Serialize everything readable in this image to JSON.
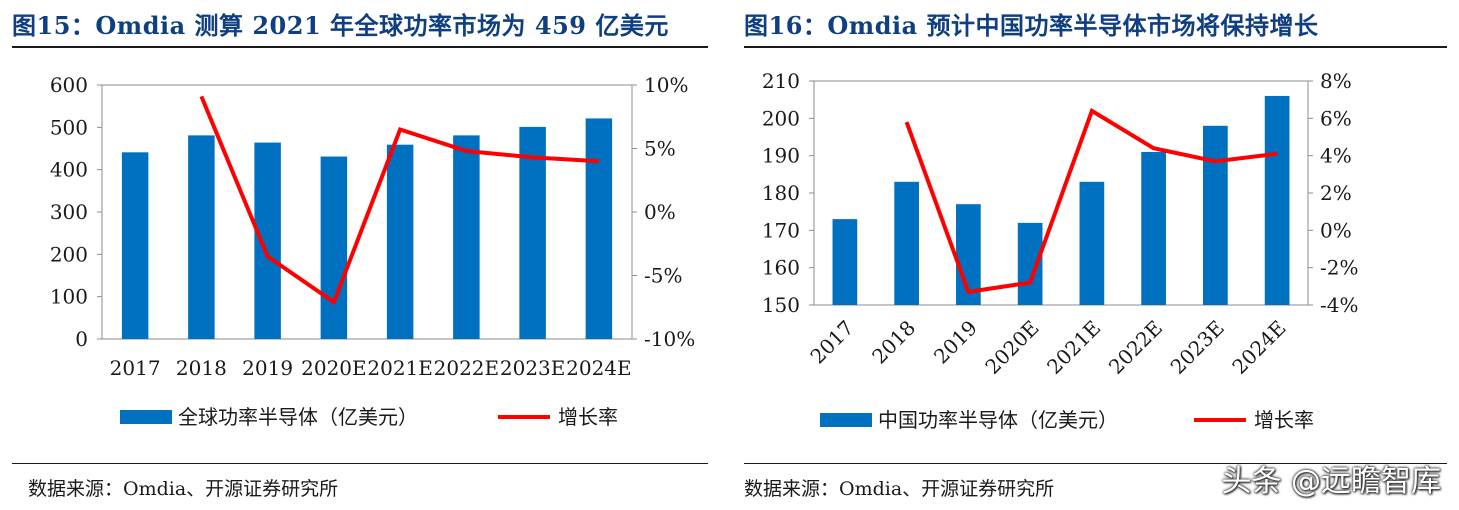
{
  "left": {
    "title": "图15：Omdia 测算 2021 年全球功率市场为 459 亿美元",
    "source": "数据来源：Omdia、开源证券研究所"
  },
  "right": {
    "title": "图16：Omdia 预计中国功率半导体市场将保持增长",
    "source": "数据来源：Omdia、开源证券研究所"
  },
  "watermark": "头条 @远瞻智库",
  "colors": {
    "bar": "#0070c0",
    "line": "#ff0000",
    "title": "#0f3f80"
  },
  "chart_data": [
    {
      "type": "bar",
      "categories": [
        "2017",
        "2018",
        "2019",
        "2020E",
        "2021E",
        "2022E",
        "2023E",
        "2024E"
      ],
      "series": [
        {
          "name": "全球功率半导体（亿美元）",
          "type": "bar",
          "axis": "left",
          "values": [
            441,
            481,
            464,
            431,
            459,
            481,
            501,
            521
          ]
        },
        {
          "name": "增长率",
          "type": "line",
          "axis": "right",
          "values": [
            null,
            9.1,
            -3.5,
            -7.1,
            6.5,
            4.8,
            4.3,
            4.0
          ]
        }
      ],
      "ylim": [
        0,
        600
      ],
      "yticks": [
        "0",
        "100",
        "200",
        "300",
        "400",
        "500",
        "600"
      ],
      "y2lim": [
        -10,
        10
      ],
      "y2ticks": [
        "-10%",
        "-5%",
        "0%",
        "5%",
        "10%"
      ],
      "legend_position": "bottom"
    },
    {
      "type": "bar",
      "categories": [
        "2017",
        "2018",
        "2019",
        "2020E",
        "2021E",
        "2022E",
        "2023E",
        "2024E"
      ],
      "series": [
        {
          "name": "中国功率半导体（亿美元）",
          "type": "bar",
          "axis": "left",
          "values": [
            173,
            183,
            177,
            172,
            183,
            191,
            198,
            206
          ]
        },
        {
          "name": "增长率",
          "type": "line",
          "axis": "right",
          "values": [
            null,
            5.8,
            -3.3,
            -2.8,
            6.4,
            4.4,
            3.7,
            4.1
          ]
        }
      ],
      "ylim": [
        150,
        210
      ],
      "yticks": [
        "150",
        "160",
        "170",
        "180",
        "190",
        "200",
        "210"
      ],
      "y2lim": [
        -4,
        8
      ],
      "y2ticks": [
        "-4%",
        "-2%",
        "0%",
        "2%",
        "4%",
        "6%",
        "8%"
      ],
      "legend_position": "bottom",
      "xlabel_rotation": -45
    }
  ]
}
